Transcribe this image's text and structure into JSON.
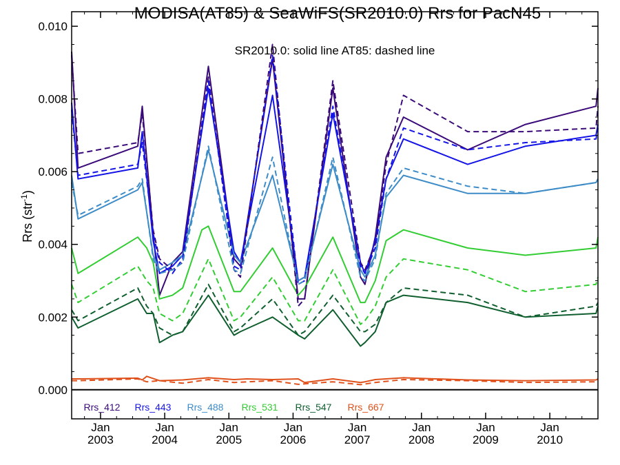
{
  "chart_data": {
    "type": "line",
    "title": "MODISA(AT85) & SeaWiFS(SR2010.0)  Rrs for PacN45",
    "annotation": "SR2010.0: solid line   AT85: dashed line",
    "ylabel_main": "Rrs (str",
    "ylabel_sup": "-1",
    "ylabel_close": ")",
    "xlim": [
      2002.55,
      2010.75
    ],
    "ylim": [
      -0.0008,
      0.0104
    ],
    "yticks": [
      0.0,
      0.002,
      0.004,
      0.006,
      0.008,
      0.01
    ],
    "ytick_labels": [
      "0.000",
      "0.002",
      "0.004",
      "0.006",
      "0.008",
      "0.010"
    ],
    "xticks": [
      {
        "top": "Jan",
        "bottom": "2003",
        "x": 2003.0
      },
      {
        "top": "Jan",
        "bottom": "2004",
        "x": 2004.0
      },
      {
        "top": "Jan",
        "bottom": "2005",
        "x": 2005.0
      },
      {
        "top": "Jan",
        "bottom": "2006",
        "x": 2006.0
      },
      {
        "top": "Jan",
        "bottom": "2007",
        "x": 2007.0
      },
      {
        "top": "Jan",
        "bottom": "2008",
        "x": 2008.0
      },
      {
        "top": "Jan",
        "bottom": "2009",
        "x": 2009.0
      },
      {
        "top": "Jan",
        "bottom": "2010",
        "x": 2010.0
      }
    ],
    "grid": false,
    "legend_placement": "bottom",
    "series": [
      {
        "name": "Rrs_412",
        "color": "#3a0a78",
        "style": "solid",
        "x": [
          2002.55,
          2002.65,
          2003.58,
          2003.65,
          2003.82,
          2003.92,
          2004.12,
          2004.28,
          2004.68,
          2005.08,
          2005.18,
          2005.68,
          2006.08,
          2006.18,
          2006.62,
          2007.05,
          2007.12,
          2007.28,
          2007.45,
          2007.72,
          2008.72,
          2009.62,
          2010.72,
          2010.75
        ],
        "values": [
          0.0093,
          0.0061,
          0.0067,
          0.0078,
          0.0043,
          0.0026,
          0.0035,
          0.0038,
          0.0089,
          0.0036,
          0.0034,
          0.0091,
          0.0025,
          0.0025,
          0.0083,
          0.0031,
          0.0029,
          0.0042,
          0.0064,
          0.0075,
          0.0066,
          0.0073,
          0.0078,
          0.0083
        ]
      },
      {
        "name": "Rrs_443",
        "color": "#1414e6",
        "style": "solid",
        "x": [
          2002.55,
          2002.65,
          2003.58,
          2003.65,
          2003.82,
          2003.92,
          2004.12,
          2004.28,
          2004.68,
          2005.08,
          2005.18,
          2005.68,
          2006.08,
          2006.18,
          2006.62,
          2007.05,
          2007.12,
          2007.28,
          2007.45,
          2007.72,
          2008.72,
          2009.62,
          2010.72,
          2010.75
        ],
        "values": [
          0.0079,
          0.0058,
          0.0061,
          0.0071,
          0.0041,
          0.0032,
          0.0034,
          0.0037,
          0.0083,
          0.0038,
          0.0035,
          0.0081,
          0.003,
          0.0031,
          0.0076,
          0.0035,
          0.0032,
          0.0041,
          0.0058,
          0.0069,
          0.0062,
          0.0067,
          0.007,
          0.0073
        ]
      },
      {
        "name": "Rrs_488",
        "color": "#3d8cc8",
        "style": "solid",
        "x": [
          2002.55,
          2002.65,
          2003.58,
          2003.65,
          2003.82,
          2003.92,
          2004.12,
          2004.28,
          2004.68,
          2005.08,
          2005.18,
          2005.68,
          2006.08,
          2006.18,
          2006.62,
          2007.05,
          2007.12,
          2007.28,
          2007.45,
          2007.72,
          2008.72,
          2009.62,
          2010.72,
          2010.75
        ],
        "values": [
          0.0059,
          0.0047,
          0.0055,
          0.0057,
          0.0037,
          0.0033,
          0.0035,
          0.0037,
          0.0066,
          0.0037,
          0.0035,
          0.0059,
          0.003,
          0.0031,
          0.0062,
          0.0033,
          0.0031,
          0.0037,
          0.0053,
          0.0059,
          0.0054,
          0.0054,
          0.0057,
          0.0058
        ]
      },
      {
        "name": "Rrs_531",
        "color": "#32cd32",
        "style": "solid",
        "x": [
          2002.55,
          2002.65,
          2003.58,
          2003.72,
          2003.82,
          2003.92,
          2004.12,
          2004.28,
          2004.58,
          2004.68,
          2005.08,
          2005.18,
          2005.68,
          2006.08,
          2006.18,
          2006.62,
          2007.05,
          2007.12,
          2007.28,
          2007.45,
          2007.72,
          2008.72,
          2009.62,
          2010.72,
          2010.75
        ],
        "values": [
          0.0039,
          0.0032,
          0.0042,
          0.0039,
          0.0035,
          0.0025,
          0.0026,
          0.0028,
          0.0044,
          0.0045,
          0.0027,
          0.0027,
          0.0039,
          0.0026,
          0.0028,
          0.0042,
          0.0024,
          0.0024,
          0.003,
          0.0041,
          0.0044,
          0.0039,
          0.0037,
          0.0039,
          0.0042
        ]
      },
      {
        "name": "Rrs_547",
        "color": "#0f5e2e",
        "style": "solid",
        "x": [
          2002.55,
          2002.65,
          2003.58,
          2003.72,
          2003.82,
          2003.92,
          2004.12,
          2004.28,
          2004.68,
          2005.08,
          2005.18,
          2005.68,
          2006.08,
          2006.18,
          2006.62,
          2007.05,
          2007.12,
          2007.28,
          2007.45,
          2007.72,
          2008.72,
          2009.62,
          2010.72,
          2010.75
        ],
        "values": [
          0.002,
          0.0017,
          0.0025,
          0.0021,
          0.0021,
          0.0013,
          0.0015,
          0.0016,
          0.0026,
          0.0015,
          0.0016,
          0.002,
          0.0015,
          0.0014,
          0.0022,
          0.0012,
          0.0013,
          0.0016,
          0.0024,
          0.0026,
          0.0024,
          0.002,
          0.0021,
          0.0023
        ]
      },
      {
        "name": "Rrs_667",
        "color": "#e0501a",
        "style": "solid",
        "x": [
          2002.55,
          2002.65,
          2003.58,
          2003.65,
          2003.72,
          2003.92,
          2004.28,
          2004.68,
          2005.08,
          2005.28,
          2005.68,
          2006.08,
          2006.18,
          2006.62,
          2007.05,
          2007.12,
          2007.28,
          2007.72,
          2008.72,
          2009.62,
          2010.72,
          2010.75
        ],
        "values": [
          0.0003,
          0.0003,
          0.00032,
          0.00027,
          0.00037,
          0.00025,
          0.00027,
          0.00033,
          0.00028,
          0.0003,
          0.00028,
          0.0003,
          0.0002,
          0.0003,
          0.0002,
          0.00022,
          0.00028,
          0.00033,
          0.00027,
          0.00025,
          0.00027,
          0.0003
        ]
      },
      {
        "name": "Rrs_412",
        "color": "#3a0a78",
        "style": "dashed",
        "x": [
          2002.55,
          2002.65,
          2003.58,
          2003.65,
          2003.82,
          2003.92,
          2004.12,
          2004.28,
          2004.68,
          2005.08,
          2005.18,
          2005.68,
          2006.08,
          2006.18,
          2006.62,
          2007.05,
          2007.12,
          2007.28,
          2007.45,
          2007.72,
          2008.72,
          2009.62,
          2010.72,
          2010.75
        ],
        "values": [
          0.0092,
          0.0065,
          0.0068,
          0.0076,
          0.0044,
          0.0036,
          0.0033,
          0.0035,
          0.0086,
          0.0033,
          0.0031,
          0.0095,
          0.0023,
          0.0025,
          0.0085,
          0.0035,
          0.0033,
          0.004,
          0.0062,
          0.0081,
          0.0071,
          0.0071,
          0.0072,
          0.0078
        ]
      },
      {
        "name": "Rrs_443",
        "color": "#1414e6",
        "style": "dashed",
        "x": [
          2002.55,
          2002.65,
          2003.58,
          2003.65,
          2003.82,
          2003.92,
          2004.12,
          2004.28,
          2004.68,
          2005.08,
          2005.18,
          2005.68,
          2006.08,
          2006.18,
          2006.62,
          2007.05,
          2007.12,
          2007.28,
          2007.45,
          2007.72,
          2008.72,
          2009.62,
          2010.72,
          2010.75
        ],
        "values": [
          0.0077,
          0.0059,
          0.0062,
          0.0068,
          0.0043,
          0.0035,
          0.0032,
          0.0036,
          0.0085,
          0.0034,
          0.0033,
          0.0092,
          0.0029,
          0.003,
          0.0078,
          0.0034,
          0.0032,
          0.0039,
          0.0058,
          0.0072,
          0.0066,
          0.0068,
          0.0069,
          0.0072
        ]
      },
      {
        "name": "Rrs_488",
        "color": "#3d8cc8",
        "style": "dashed",
        "x": [
          2002.55,
          2002.65,
          2003.58,
          2003.65,
          2003.82,
          2003.92,
          2004.12,
          2004.28,
          2004.68,
          2005.08,
          2005.18,
          2005.68,
          2006.08,
          2006.18,
          2006.62,
          2007.05,
          2007.12,
          2007.28,
          2007.45,
          2007.72,
          2008.72,
          2009.62,
          2010.72,
          2010.75
        ],
        "values": [
          0.0057,
          0.0048,
          0.0056,
          0.0058,
          0.0036,
          0.0032,
          0.0033,
          0.0035,
          0.0067,
          0.0033,
          0.0032,
          0.0064,
          0.0029,
          0.003,
          0.0064,
          0.0031,
          0.003,
          0.0036,
          0.0054,
          0.0061,
          0.0056,
          0.0054,
          0.0057,
          0.0058
        ]
      },
      {
        "name": "Rrs_531",
        "color": "#32cd32",
        "style": "dashed",
        "x": [
          2002.55,
          2002.65,
          2003.58,
          2003.72,
          2003.82,
          2003.92,
          2004.12,
          2004.28,
          2004.68,
          2005.08,
          2005.18,
          2005.68,
          2006.08,
          2006.18,
          2006.62,
          2007.05,
          2007.12,
          2007.28,
          2007.45,
          2007.72,
          2008.72,
          2009.62,
          2010.72,
          2010.75
        ],
        "values": [
          0.0029,
          0.0024,
          0.0034,
          0.003,
          0.0028,
          0.0021,
          0.0019,
          0.0021,
          0.0036,
          0.0019,
          0.002,
          0.0031,
          0.0019,
          0.0019,
          0.0033,
          0.0018,
          0.0019,
          0.0023,
          0.0031,
          0.0036,
          0.0033,
          0.0027,
          0.0029,
          0.0031
        ]
      },
      {
        "name": "Rrs_547",
        "color": "#0f5e2e",
        "style": "dashed",
        "x": [
          2002.55,
          2002.65,
          2003.58,
          2003.72,
          2003.82,
          2003.92,
          2004.12,
          2004.28,
          2004.68,
          2005.08,
          2005.18,
          2005.68,
          2006.08,
          2006.18,
          2006.62,
          2007.05,
          2007.12,
          2007.28,
          2007.45,
          2007.72,
          2008.72,
          2009.62,
          2010.72,
          2010.75
        ],
        "values": [
          0.0022,
          0.0019,
          0.0028,
          0.0023,
          0.0021,
          0.0017,
          0.0015,
          0.0016,
          0.0029,
          0.0016,
          0.0017,
          0.0025,
          0.0015,
          0.0016,
          0.0026,
          0.0016,
          0.0016,
          0.0018,
          0.0024,
          0.0028,
          0.0026,
          0.002,
          0.0023,
          0.0024
        ]
      },
      {
        "name": "Rrs_667",
        "color": "#e0501a",
        "style": "dashed",
        "x": [
          2002.55,
          2002.65,
          2003.58,
          2003.72,
          2003.92,
          2004.28,
          2004.68,
          2005.08,
          2005.68,
          2006.08,
          2006.62,
          2007.05,
          2007.28,
          2007.72,
          2008.72,
          2009.62,
          2010.72,
          2010.75
        ],
        "values": [
          0.00025,
          0.00025,
          0.0003,
          0.00022,
          0.00025,
          0.00018,
          0.00028,
          0.0002,
          0.00025,
          0.00015,
          0.00022,
          0.00014,
          0.0002,
          0.00028,
          0.00025,
          0.0002,
          0.00022,
          0.00025
        ]
      }
    ],
    "legend": [
      {
        "label": "Rrs_412",
        "color": "#3a0a78"
      },
      {
        "label": "Rrs_443",
        "color": "#1414e6"
      },
      {
        "label": "Rrs_488",
        "color": "#3d8cc8"
      },
      {
        "label": "Rrs_531",
        "color": "#32cd32"
      },
      {
        "label": "Rrs_547",
        "color": "#0f5e2e"
      },
      {
        "label": "Rrs_667",
        "color": "#e0501a"
      }
    ]
  }
}
